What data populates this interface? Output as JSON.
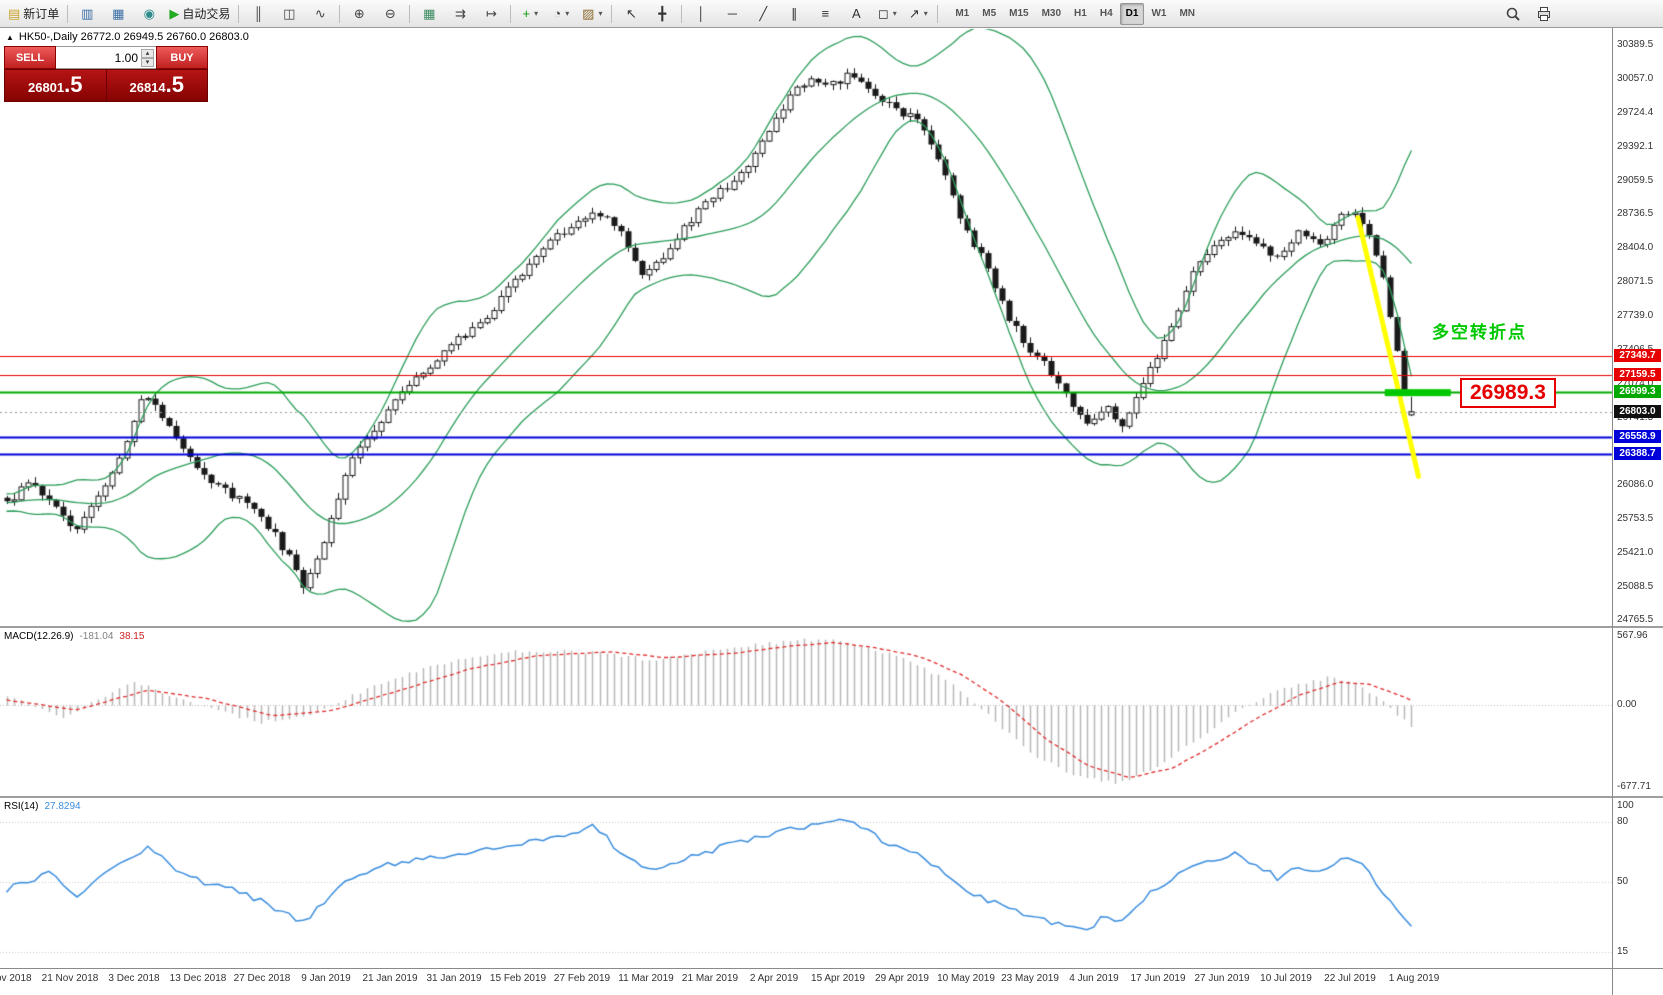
{
  "icons": {
    "collapse_arrow": "▲",
    "spinner_up": "▴",
    "spinner_down": "▾"
  },
  "toolbar": {
    "items": [
      {
        "type": "btn",
        "name": "new-order-button",
        "glyph": "▤",
        "color": "#c9a227",
        "label": "新订单"
      },
      {
        "type": "sep"
      },
      {
        "type": "btn",
        "name": "market-watch-button",
        "glyph": "▥",
        "color": "#3a6ea5"
      },
      {
        "type": "btn",
        "name": "profiles-button",
        "glyph": "▦",
        "color": "#3a6ea5"
      },
      {
        "type": "btn",
        "name": "alerts-button",
        "glyph": "◉",
        "color": "#2e8b8b"
      },
      {
        "type": "btn",
        "name": "autotrading-button",
        "glyph": "▶",
        "color": "#22aa22",
        "label": "自动交易"
      },
      {
        "type": "sep"
      },
      {
        "type": "btn",
        "name": "chart-bars-button",
        "glyph": "║",
        "color": "#444"
      },
      {
        "type": "btn",
        "name": "chart-candles-button",
        "glyph": "◫",
        "color": "#444"
      },
      {
        "type": "btn",
        "name": "chart-line-button",
        "glyph": "∿",
        "color": "#444"
      },
      {
        "type": "sep"
      },
      {
        "type": "btn",
        "name": "zoom-in-button",
        "glyph": "⊕",
        "color": "#444"
      },
      {
        "type": "btn",
        "name": "zoom-out-button",
        "glyph": "⊖",
        "color": "#444"
      },
      {
        "type": "sep"
      },
      {
        "type": "btn",
        "name": "tile-windows-button",
        "glyph": "▦",
        "color": "#3a8a5f"
      },
      {
        "type": "btn",
        "name": "auto-scroll-button",
        "glyph": "⇉",
        "color": "#444"
      },
      {
        "type": "btn",
        "name": "chart-shift-button",
        "glyph": "↦",
        "color": "#444"
      },
      {
        "type": "sep"
      },
      {
        "type": "btn",
        "name": "indicators-button",
        "glyph": "+",
        "color": "#0a9a0a",
        "caret": true
      },
      {
        "type": "btn",
        "name": "periods-button",
        "glyph": "◔",
        "color": "#444",
        "caret": true
      },
      {
        "type": "btn",
        "name": "templates-button",
        "glyph": "▨",
        "color": "#8a6a2a",
        "caret": true
      },
      {
        "type": "sep"
      },
      {
        "type": "btn",
        "name": "cursor-button",
        "glyph": "↖",
        "color": "#333"
      },
      {
        "type": "btn",
        "name": "crosshair-button",
        "glyph": "╋",
        "color": "#333"
      },
      {
        "type": "sep"
      },
      {
        "type": "btn",
        "name": "vertical-line-button",
        "glyph": "│",
        "color": "#333"
      },
      {
        "type": "btn",
        "name": "horizontal-line-button",
        "glyph": "─",
        "color": "#333"
      },
      {
        "type": "btn",
        "name": "trendline-button",
        "glyph": "╱",
        "color": "#333"
      },
      {
        "type": "btn",
        "name": "channel-button",
        "glyph": "∥",
        "color": "#333"
      },
      {
        "type": "btn",
        "name": "fibonacci-button",
        "glyph": "≡",
        "color": "#333"
      },
      {
        "type": "btn",
        "name": "text-button",
        "glyph": "A",
        "color": "#333"
      },
      {
        "type": "btn",
        "name": "shapes-button",
        "glyph": "◻",
        "color": "#333",
        "caret": true
      },
      {
        "type": "btn",
        "name": "arrows-button",
        "glyph": "↗",
        "color": "#333",
        "caret": true
      },
      {
        "type": "sep"
      }
    ],
    "timeframes": [
      "M1",
      "M5",
      "M15",
      "M30",
      "H1",
      "H4",
      "D1",
      "W1",
      "MN"
    ],
    "active_timeframe": "D1"
  },
  "chart": {
    "info_text": "HK50-,Daily  26772.0 26949.5 26760.0 26803.0",
    "trade_panel": {
      "sell_label": "SELL",
      "buy_label": "BUY",
      "volume": "1.00",
      "sell_price": "26801.5",
      "buy_price": "26814.5",
      "sell_price_small": "26801",
      "sell_price_large": ".5",
      "buy_price_small": "26814",
      "buy_price_large": ".5"
    },
    "annotations": {
      "turning_point": "多空转折点",
      "turning_point_color": "#00c800",
      "price_callout": "26989.3",
      "price_callout_color": "#e60000"
    },
    "y_axis_labels": [
      "30389.5",
      "30057.0",
      "29724.4",
      "29392.1",
      "29059.5",
      "28736.5",
      "28404.0",
      "28071.5",
      "27739.0",
      "27406.5",
      "27074.0",
      "26741.5",
      "26409.0",
      "26086.0",
      "25753.5",
      "25421.0",
      "25088.5",
      "24765.5"
    ],
    "price_tags": [
      {
        "label": "27349.7",
        "color": "#e60000"
      },
      {
        "label": "27159.5",
        "color": "#e60000"
      },
      {
        "label": "26999.3",
        "color": "#00a800"
      },
      {
        "label": "26803.0",
        "color": "#101010"
      },
      {
        "label": "26558.9",
        "color": "#0000d8"
      },
      {
        "label": "26388.7",
        "color": "#0000d8"
      }
    ],
    "x_axis_labels": [
      "9 Nov 2018",
      "21 Nov 2018",
      "3 Dec 2018",
      "13 Dec 2018",
      "27 Dec 2018",
      "9 Jan 2019",
      "21 Jan 2019",
      "31 Jan 2019",
      "15 Feb 2019",
      "27 Feb 2019",
      "11 Mar 2019",
      "21 Mar 2019",
      "2 Apr 2019",
      "15 Apr 2019",
      "29 Apr 2019",
      "10 May 2019",
      "23 May 2019",
      "4 Jun 2019",
      "17 Jun 2019",
      "27 Jun 2019",
      "10 Jul 2019",
      "22 Jul 2019",
      "1 Aug 2019"
    ]
  },
  "indicators": {
    "macd": {
      "name": "MACD(12.26.9)",
      "main_value": "-181.04",
      "signal_value": "38.15",
      "scale": [
        "567.96",
        "0.00",
        "-677.71"
      ]
    },
    "rsi": {
      "name": "RSI(14)",
      "value": "27.8294",
      "scale": [
        "100",
        "80",
        "50",
        "15"
      ]
    }
  },
  "chart_data": {
    "type": "candlestick",
    "symbol": "HK50",
    "period": "Daily",
    "candle_count": 200,
    "seed": 42,
    "last_candle": {
      "open": 26772.0,
      "high": 26949.5,
      "low": 26760.0,
      "close": 26803.0
    },
    "current_price": 26803.0,
    "y_range": [
      24779,
      30534
    ],
    "price_path": [
      [
        0,
        25900
      ],
      [
        0.018,
        26150
      ],
      [
        0.048,
        25620
      ],
      [
        0.075,
        26150
      ],
      [
        0.098,
        27020
      ],
      [
        0.112,
        26700
      ],
      [
        0.148,
        26080
      ],
      [
        0.178,
        25850
      ],
      [
        0.2,
        25400
      ],
      [
        0.212,
        25060
      ],
      [
        0.228,
        25620
      ],
      [
        0.243,
        26280
      ],
      [
        0.262,
        26650
      ],
      [
        0.282,
        26980
      ],
      [
        0.31,
        27380
      ],
      [
        0.33,
        27580
      ],
      [
        0.355,
        27950
      ],
      [
        0.376,
        28330
      ],
      [
        0.4,
        28600
      ],
      [
        0.42,
        28780
      ],
      [
        0.438,
        28560
      ],
      [
        0.452,
        28120
      ],
      [
        0.468,
        28330
      ],
      [
        0.49,
        28720
      ],
      [
        0.512,
        29010
      ],
      [
        0.53,
        29230
      ],
      [
        0.545,
        29580
      ],
      [
        0.558,
        29900
      ],
      [
        0.572,
        30080
      ],
      [
        0.585,
        29960
      ],
      [
        0.6,
        30130
      ],
      [
        0.615,
        29920
      ],
      [
        0.632,
        29780
      ],
      [
        0.648,
        29650
      ],
      [
        0.663,
        29280
      ],
      [
        0.68,
        28620
      ],
      [
        0.694,
        28340
      ],
      [
        0.71,
        27820
      ],
      [
        0.726,
        27420
      ],
      [
        0.74,
        27280
      ],
      [
        0.755,
        26950
      ],
      [
        0.77,
        26700
      ],
      [
        0.783,
        26870
      ],
      [
        0.794,
        26620
      ],
      [
        0.81,
        27120
      ],
      [
        0.828,
        27560
      ],
      [
        0.845,
        28180
      ],
      [
        0.86,
        28470
      ],
      [
        0.875,
        28580
      ],
      [
        0.89,
        28430
      ],
      [
        0.905,
        28300
      ],
      [
        0.92,
        28560
      ],
      [
        0.935,
        28420
      ],
      [
        0.95,
        28700
      ],
      [
        0.963,
        28720
      ],
      [
        0.972,
        28460
      ],
      [
        0.981,
        28050
      ],
      [
        0.988,
        27550
      ],
      [
        0.994,
        27100
      ],
      [
        0.998,
        26920
      ],
      [
        1,
        26803
      ]
    ],
    "bollinger": {
      "period": 20,
      "deviation": 2,
      "color": "#2e9e5b"
    },
    "levels": [
      {
        "price": 27349.7,
        "color": "#e60000",
        "width": 1
      },
      {
        "price": 27159.5,
        "color": "#e60000",
        "width": 1
      },
      {
        "price": 26999.3,
        "color": "#00a800",
        "width": 2
      },
      {
        "price": 26558.9,
        "color": "#0000d8",
        "width": 2
      },
      {
        "price": 26388.7,
        "color": "#0000d8",
        "width": 2
      }
    ],
    "macd": {
      "histogram_color": "#b8b8b8",
      "signal_color": "#e03030",
      "main_path": [
        [
          0,
          80
        ],
        [
          0.04,
          -110
        ],
        [
          0.09,
          190
        ],
        [
          0.13,
          30
        ],
        [
          0.18,
          -150
        ],
        [
          0.22,
          -60
        ],
        [
          0.27,
          200
        ],
        [
          0.32,
          370
        ],
        [
          0.37,
          450
        ],
        [
          0.42,
          430
        ],
        [
          0.46,
          370
        ],
        [
          0.51,
          460
        ],
        [
          0.55,
          520
        ],
        [
          0.58,
          545
        ],
        [
          0.61,
          480
        ],
        [
          0.64,
          380
        ],
        [
          0.67,
          200
        ],
        [
          0.7,
          -100
        ],
        [
          0.73,
          -400
        ],
        [
          0.76,
          -590
        ],
        [
          0.79,
          -645
        ],
        [
          0.82,
          -510
        ],
        [
          0.85,
          -260
        ],
        [
          0.88,
          -20
        ],
        [
          0.91,
          140
        ],
        [
          0.94,
          225
        ],
        [
          0.96,
          185
        ],
        [
          0.98,
          30
        ],
        [
          1,
          -181.04
        ]
      ],
      "signal_path": [
        [
          0,
          40
        ],
        [
          0.05,
          -40
        ],
        [
          0.1,
          120
        ],
        [
          0.14,
          60
        ],
        [
          0.19,
          -90
        ],
        [
          0.23,
          -50
        ],
        [
          0.28,
          120
        ],
        [
          0.33,
          300
        ],
        [
          0.38,
          410
        ],
        [
          0.43,
          440
        ],
        [
          0.47,
          390
        ],
        [
          0.52,
          430
        ],
        [
          0.56,
          490
        ],
        [
          0.59,
          515
        ],
        [
          0.62,
          470
        ],
        [
          0.65,
          400
        ],
        [
          0.68,
          250
        ],
        [
          0.71,
          20
        ],
        [
          0.74,
          -280
        ],
        [
          0.77,
          -500
        ],
        [
          0.8,
          -600
        ],
        [
          0.83,
          -520
        ],
        [
          0.86,
          -330
        ],
        [
          0.89,
          -110
        ],
        [
          0.92,
          80
        ],
        [
          0.95,
          190
        ],
        [
          0.97,
          170
        ],
        [
          0.985,
          110
        ],
        [
          1,
          38.15
        ]
      ]
    },
    "rsi": {
      "color": "#3a8dde",
      "levels": [
        80,
        50,
        15
      ],
      "path": [
        [
          0,
          46
        ],
        [
          0.03,
          55
        ],
        [
          0.05,
          42
        ],
        [
          0.08,
          60
        ],
        [
          0.1,
          67
        ],
        [
          0.13,
          52
        ],
        [
          0.17,
          44
        ],
        [
          0.2,
          34
        ],
        [
          0.212,
          30
        ],
        [
          0.24,
          50
        ],
        [
          0.27,
          58
        ],
        [
          0.3,
          62
        ],
        [
          0.33,
          65
        ],
        [
          0.36,
          68
        ],
        [
          0.39,
          72
        ],
        [
          0.42,
          78
        ],
        [
          0.44,
          62
        ],
        [
          0.46,
          55
        ],
        [
          0.49,
          63
        ],
        [
          0.52,
          70
        ],
        [
          0.55,
          75
        ],
        [
          0.58,
          80
        ],
        [
          0.6,
          82
        ],
        [
          0.62,
          72
        ],
        [
          0.65,
          63
        ],
        [
          0.68,
          48
        ],
        [
          0.7,
          40
        ],
        [
          0.73,
          33
        ],
        [
          0.755,
          28
        ],
        [
          0.77,
          26
        ],
        [
          0.783,
          34
        ],
        [
          0.794,
          30
        ],
        [
          0.81,
          42
        ],
        [
          0.83,
          52
        ],
        [
          0.85,
          60
        ],
        [
          0.875,
          64
        ],
        [
          0.89,
          58
        ],
        [
          0.905,
          52
        ],
        [
          0.92,
          58
        ],
        [
          0.935,
          54
        ],
        [
          0.95,
          62
        ],
        [
          0.963,
          60
        ],
        [
          0.972,
          52
        ],
        [
          0.981,
          44
        ],
        [
          0.99,
          35
        ],
        [
          1,
          27.83
        ]
      ]
    },
    "trend_line": {
      "color": "#ffff00",
      "width": 5,
      "f1": 0.962,
      "price1": 28700,
      "f2": 1.005,
      "price2": 26170
    },
    "highlight_bar": {
      "color": "#00c800",
      "f1": 0.981,
      "f2": 1.028,
      "price": 26989.3,
      "height": 7
    }
  }
}
